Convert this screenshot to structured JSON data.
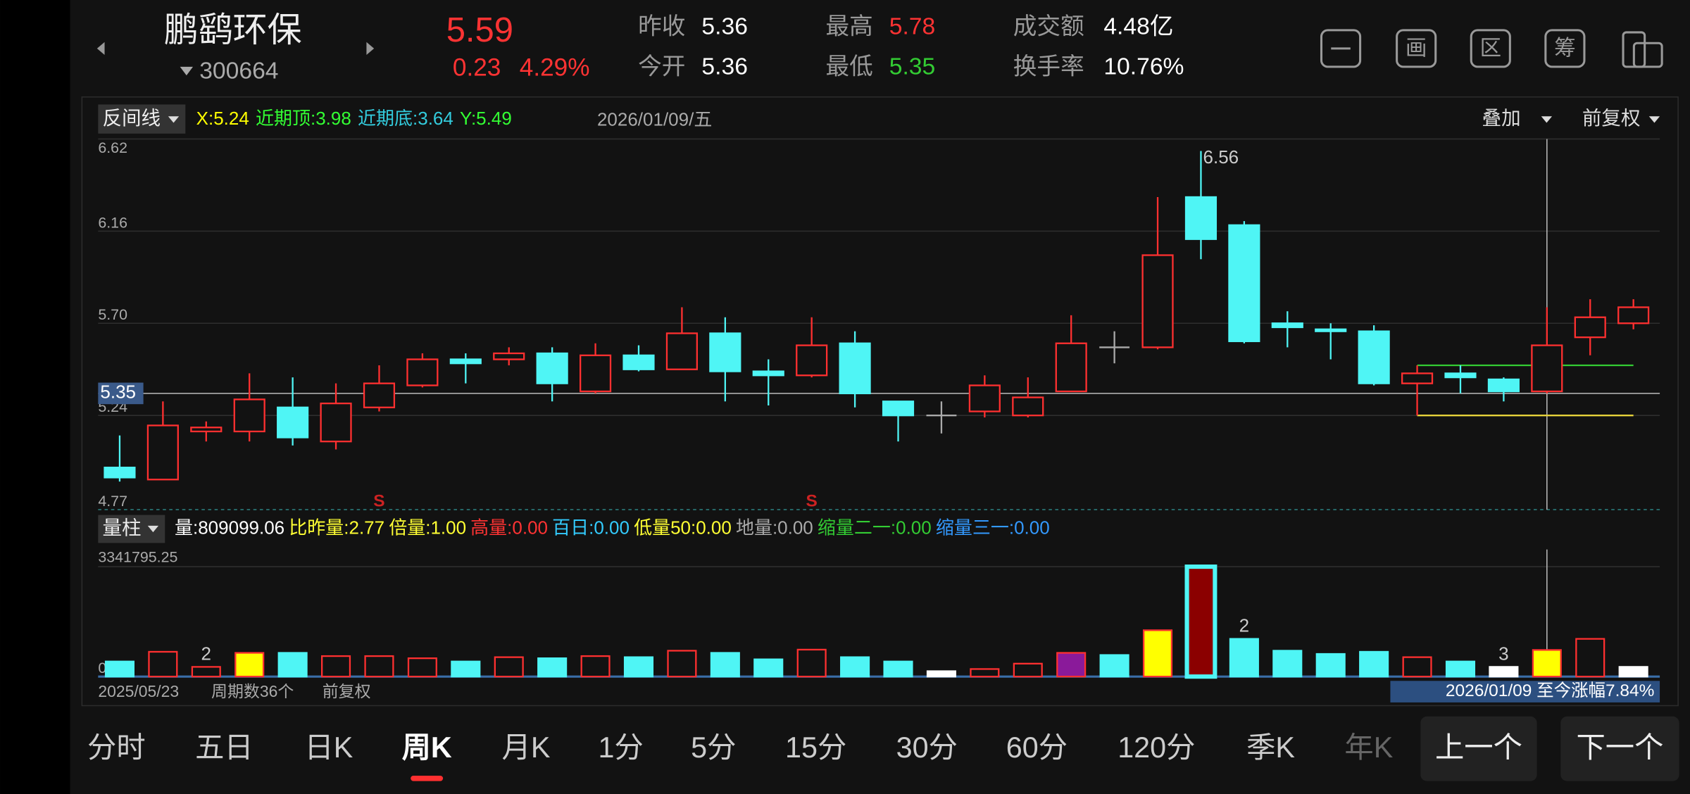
{
  "header": {
    "name": "鹏鹞环保",
    "code": "300664",
    "price": "5.59",
    "change": "0.23",
    "change_pct": "4.29%",
    "stats": [
      {
        "label": "昨收",
        "value": "5.36",
        "color": "#ffffff"
      },
      {
        "label": "今开",
        "value": "5.36",
        "color": "#ffffff"
      },
      {
        "label": "最高",
        "value": "5.78",
        "color": "#ff3333"
      },
      {
        "label": "最低",
        "value": "5.35",
        "color": "#33cc33"
      },
      {
        "label": "成交额",
        "value": "4.48亿",
        "color": "#ffffff"
      },
      {
        "label": "换手率",
        "value": "10.76%",
        "color": "#ffffff"
      }
    ],
    "tools": [
      "画",
      "区",
      "筹"
    ]
  },
  "chart_data": [
    {
      "type": "candlestick",
      "indicator": "反间线",
      "date": "2026/01/09/五",
      "overlay": "叠加",
      "adjust": "前复权",
      "legend": [
        {
          "label": "X:",
          "value": 5.24,
          "color": "#ffff00"
        },
        {
          "label": "近期顶:",
          "value": 3.98,
          "color": "#33ff33"
        },
        {
          "label": "近期底:",
          "value": 3.64,
          "color": "#33ccdd"
        },
        {
          "label": "Y:",
          "value": 5.49,
          "color": "#33ff33"
        }
      ],
      "ylim": [
        4.77,
        6.62
      ],
      "yticks": [
        6.62,
        6.16,
        {
          "value": 5.7,
          "label": "5.70"
        },
        5.24,
        4.77
      ],
      "crosshair": 5.35,
      "up_color": "#ff3030",
      "down_color": "#4ff5f5",
      "flat_color": "#aaaaaa",
      "open": [
        4.98,
        4.92,
        5.16,
        5.16,
        5.28,
        5.11,
        5.28,
        5.39,
        5.52,
        5.52,
        5.55,
        5.36,
        5.54,
        5.47,
        5.65,
        5.46,
        5.44,
        5.6,
        5.31,
        5.24,
        5.26,
        5.24,
        5.36,
        5.58,
        5.58,
        6.33,
        6.19,
        5.7,
        5.67,
        5.66,
        5.4,
        5.45,
        5.42,
        5.36,
        5.63,
        5.7
      ],
      "high": [
        5.14,
        5.31,
        5.21,
        5.45,
        5.43,
        5.4,
        5.49,
        5.55,
        5.55,
        5.58,
        5.58,
        5.6,
        5.59,
        5.78,
        5.73,
        5.52,
        5.73,
        5.66,
        5.31,
        5.31,
        5.44,
        5.43,
        5.74,
        5.66,
        6.33,
        6.56,
        6.21,
        5.76,
        5.7,
        5.69,
        5.49,
        5.49,
        5.43,
        5.78,
        5.82,
        5.82
      ],
      "low": [
        4.91,
        4.92,
        5.11,
        5.11,
        5.09,
        5.07,
        5.26,
        5.38,
        5.4,
        5.49,
        5.31,
        5.35,
        5.46,
        5.47,
        5.31,
        5.29,
        5.43,
        5.28,
        5.11,
        5.15,
        5.23,
        5.23,
        5.36,
        5.5,
        5.57,
        6.02,
        5.6,
        5.58,
        5.52,
        5.39,
        5.24,
        5.35,
        5.31,
        5.35,
        5.54,
        5.67
      ],
      "close": [
        4.93,
        5.19,
        5.18,
        5.32,
        5.13,
        5.3,
        5.4,
        5.52,
        5.5,
        5.55,
        5.4,
        5.54,
        5.47,
        5.65,
        5.46,
        5.44,
        5.59,
        5.35,
        5.24,
        5.24,
        5.39,
        5.33,
        5.6,
        5.58,
        6.04,
        6.12,
        5.61,
        5.68,
        5.66,
        5.4,
        5.45,
        5.43,
        5.36,
        5.59,
        5.73,
        5.78
      ],
      "signals": [
        null,
        null,
        null,
        null,
        null,
        null,
        "S",
        null,
        null,
        null,
        null,
        null,
        null,
        null,
        null,
        null,
        "S",
        null,
        null,
        null,
        null,
        null,
        null,
        null,
        null,
        null,
        null,
        null,
        null,
        null,
        null,
        null,
        null,
        null,
        null,
        null
      ]
    },
    {
      "type": "bar",
      "indicator": "量柱",
      "legend": [
        {
          "text": "量:809099.06",
          "color": "#ffffff"
        },
        {
          "text": "比昨量:2.77",
          "color": "#ffff33"
        },
        {
          "text": "倍量:1.00",
          "color": "#ffff33"
        },
        {
          "text": "高量:0.00",
          "color": "#ff3333"
        },
        {
          "text": "百日:0.00",
          "color": "#33ccff"
        },
        {
          "text": "低量50:0.00",
          "color": "#ffff33"
        },
        {
          "text": "地量:0.00",
          "color": "#aaaaaa"
        },
        {
          "text": "缩量二一:0.00",
          "color": "#33cc33"
        },
        {
          "text": "缩量三一:0.00",
          "color": "#3399ff"
        }
      ],
      "ylim": [
        0,
        3341795.25
      ],
      "yticks": [
        {
          "value": 0,
          "label": "0.00"
        },
        3341795.25
      ],
      "values": [
        458700,
        753500,
        294900,
        720800,
        720800,
        622500,
        622500,
        557000,
        458700,
        589700,
        557000,
        622500,
        589700,
        786300,
        720800,
        524200,
        819100,
        589700,
        458700,
        163800,
        229300,
        393200,
        720800,
        655300,
        1408800,
        3341795.25,
        1146700,
        786300,
        688000,
        753500,
        589700,
        458700,
        294900,
        809099.06,
        1146700,
        294900
      ],
      "fills": [
        "#4ff5f5",
        "none",
        "none",
        "#ffff00",
        "#4ff5f5",
        "none",
        "none",
        "none",
        "#4ff5f5",
        "none",
        "#4ff5f5",
        "none",
        "#4ff5f5",
        "none",
        "#4ff5f5",
        "#4ff5f5",
        "none",
        "#4ff5f5",
        "#4ff5f5",
        "#ffffff",
        "none",
        "none",
        "#8a1a9a",
        "#4ff5f5",
        "#ffff00",
        "#8b0000",
        "#4ff5f5",
        "#4ff5f5",
        "#4ff5f5",
        "#4ff5f5",
        "none",
        "#4ff5f5",
        "#ffffff",
        "#ffff00",
        "none",
        "#ffffff"
      ],
      "strokes": [
        "#4ff5f5",
        "#ff3030",
        "#ff3030",
        "#ff3030",
        "#4ff5f5",
        "#ff3030",
        "#ff3030",
        "#ff3030",
        "#4ff5f5",
        "#ff3030",
        "#4ff5f5",
        "#ff3030",
        "#4ff5f5",
        "#ff3030",
        "#4ff5f5",
        "#4ff5f5",
        "#ff3030",
        "#4ff5f5",
        "#4ff5f5",
        "#ffffff",
        "#ff3030",
        "#ff3030",
        "#ff3030",
        "#4ff5f5",
        "#ff3030",
        "#4ff5f5",
        "#4ff5f5",
        "#4ff5f5",
        "#4ff5f5",
        "#4ff5f5",
        "#ff3030",
        "#4ff5f5",
        "#ffffff",
        "#ff3030",
        "#ff3030",
        "#ffffff"
      ],
      "annotations": [
        null,
        null,
        "2",
        null,
        null,
        null,
        null,
        null,
        null,
        null,
        null,
        null,
        null,
        null,
        null,
        null,
        null,
        null,
        null,
        null,
        null,
        null,
        null,
        null,
        null,
        null,
        "2",
        null,
        null,
        null,
        null,
        null,
        "3",
        null,
        null,
        null
      ]
    }
  ],
  "footer": {
    "start_date": "2025/05/23",
    "periods": "周期数36个",
    "adjust": "前复权",
    "range": "2026/01/09 至今涨幅7.84%"
  },
  "tabs": [
    "分时",
    "五日",
    "日K",
    "周K",
    "月K",
    "1分",
    "5分",
    "15分",
    "30分",
    "60分",
    "120分",
    "季K",
    "年K"
  ],
  "selected_tab": 3,
  "nav": [
    "上一个",
    "下一个"
  ]
}
